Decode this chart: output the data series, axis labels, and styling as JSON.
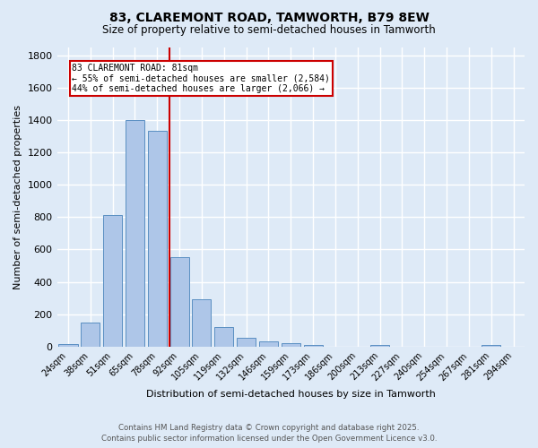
{
  "title": "83, CLAREMONT ROAD, TAMWORTH, B79 8EW",
  "subtitle": "Size of property relative to semi-detached houses in Tamworth",
  "xlabel": "Distribution of semi-detached houses by size in Tamworth",
  "ylabel": "Number of semi-detached properties",
  "categories": [
    "24sqm",
    "38sqm",
    "51sqm",
    "65sqm",
    "78sqm",
    "92sqm",
    "105sqm",
    "119sqm",
    "132sqm",
    "146sqm",
    "159sqm",
    "173sqm",
    "186sqm",
    "200sqm",
    "213sqm",
    "227sqm",
    "240sqm",
    "254sqm",
    "267sqm",
    "281sqm",
    "294sqm"
  ],
  "values": [
    15,
    150,
    810,
    1400,
    1330,
    550,
    290,
    120,
    52,
    30,
    20,
    10,
    0,
    0,
    10,
    0,
    0,
    0,
    0,
    10,
    0
  ],
  "bar_color": "#aec6e8",
  "bar_edge_color": "#5a8fc2",
  "background_color": "#deeaf7",
  "grid_color": "#ffffff",
  "vline_x": 4.57,
  "vline_color": "#cc0000",
  "annotation_title": "83 CLAREMONT ROAD: 81sqm",
  "annotation_line1": "← 55% of semi-detached houses are smaller (2,584)",
  "annotation_line2": "44% of semi-detached houses are larger (2,066) →",
  "annotation_box_color": "#ffffff",
  "annotation_box_edge": "#cc0000",
  "ylim": [
    0,
    1850
  ],
  "yticks": [
    0,
    200,
    400,
    600,
    800,
    1000,
    1200,
    1400,
    1600,
    1800
  ],
  "footer_line1": "Contains HM Land Registry data © Crown copyright and database right 2025.",
  "footer_line2": "Contains public sector information licensed under the Open Government Licence v3.0."
}
